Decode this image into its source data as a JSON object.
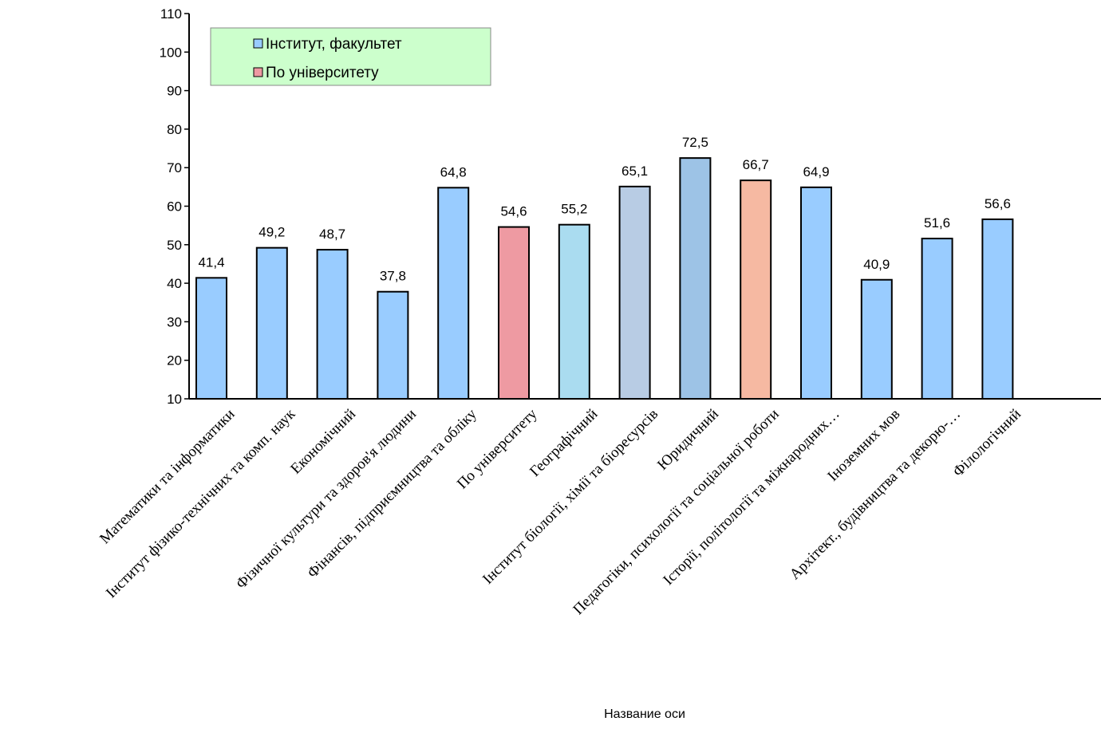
{
  "chart_data": {
    "type": "bar",
    "categories": [
      "Математики та інформатики",
      "Інститут фізико-технічних та комп. наук",
      "Економічний",
      "Фізичної культури та здоров'я людини",
      "Фінансів, підприємництва та обліку",
      "По університету",
      "Географічний",
      "Інститут біології, хімії та біоресурсів",
      "Юридичний",
      "Педагогіки, психології та соціальної роботи",
      "Історії, політології та міжнародних…",
      "Іноземних мов",
      "Архітект., будівництва та декорю-…",
      "Філологічний"
    ],
    "values": [
      41.4,
      49.2,
      48.7,
      37.8,
      64.8,
      54.6,
      55.2,
      65.1,
      72.5,
      66.7,
      64.9,
      40.9,
      51.6,
      56.6
    ],
    "value_labels": [
      "41,4",
      "49,2",
      "48,7",
      "37,8",
      "64,8",
      "54,6",
      "55,2",
      "65,1",
      "72,5",
      "66,7",
      "64,9",
      "40,9",
      "51,6",
      "56,6"
    ],
    "colors": [
      "#99ccff",
      "#99ccff",
      "#99ccff",
      "#99ccff",
      "#99ccff",
      "#ee9aa2",
      "#aadcf0",
      "#b8cce4",
      "#9dc3e6",
      "#f6b9a2",
      "#99ccff",
      "#99ccff",
      "#99ccff",
      "#99ccff"
    ],
    "legend": [
      {
        "name": "Інститут, факультет",
        "color": "#99ccff"
      },
      {
        "name": "По університету",
        "color": "#ee9aa2"
      }
    ],
    "x_label": "Название оси",
    "ylim": [
      10,
      110
    ],
    "yticks": [
      10,
      20,
      30,
      40,
      50,
      60,
      70,
      80,
      90,
      100,
      110
    ],
    "grid": false
  }
}
